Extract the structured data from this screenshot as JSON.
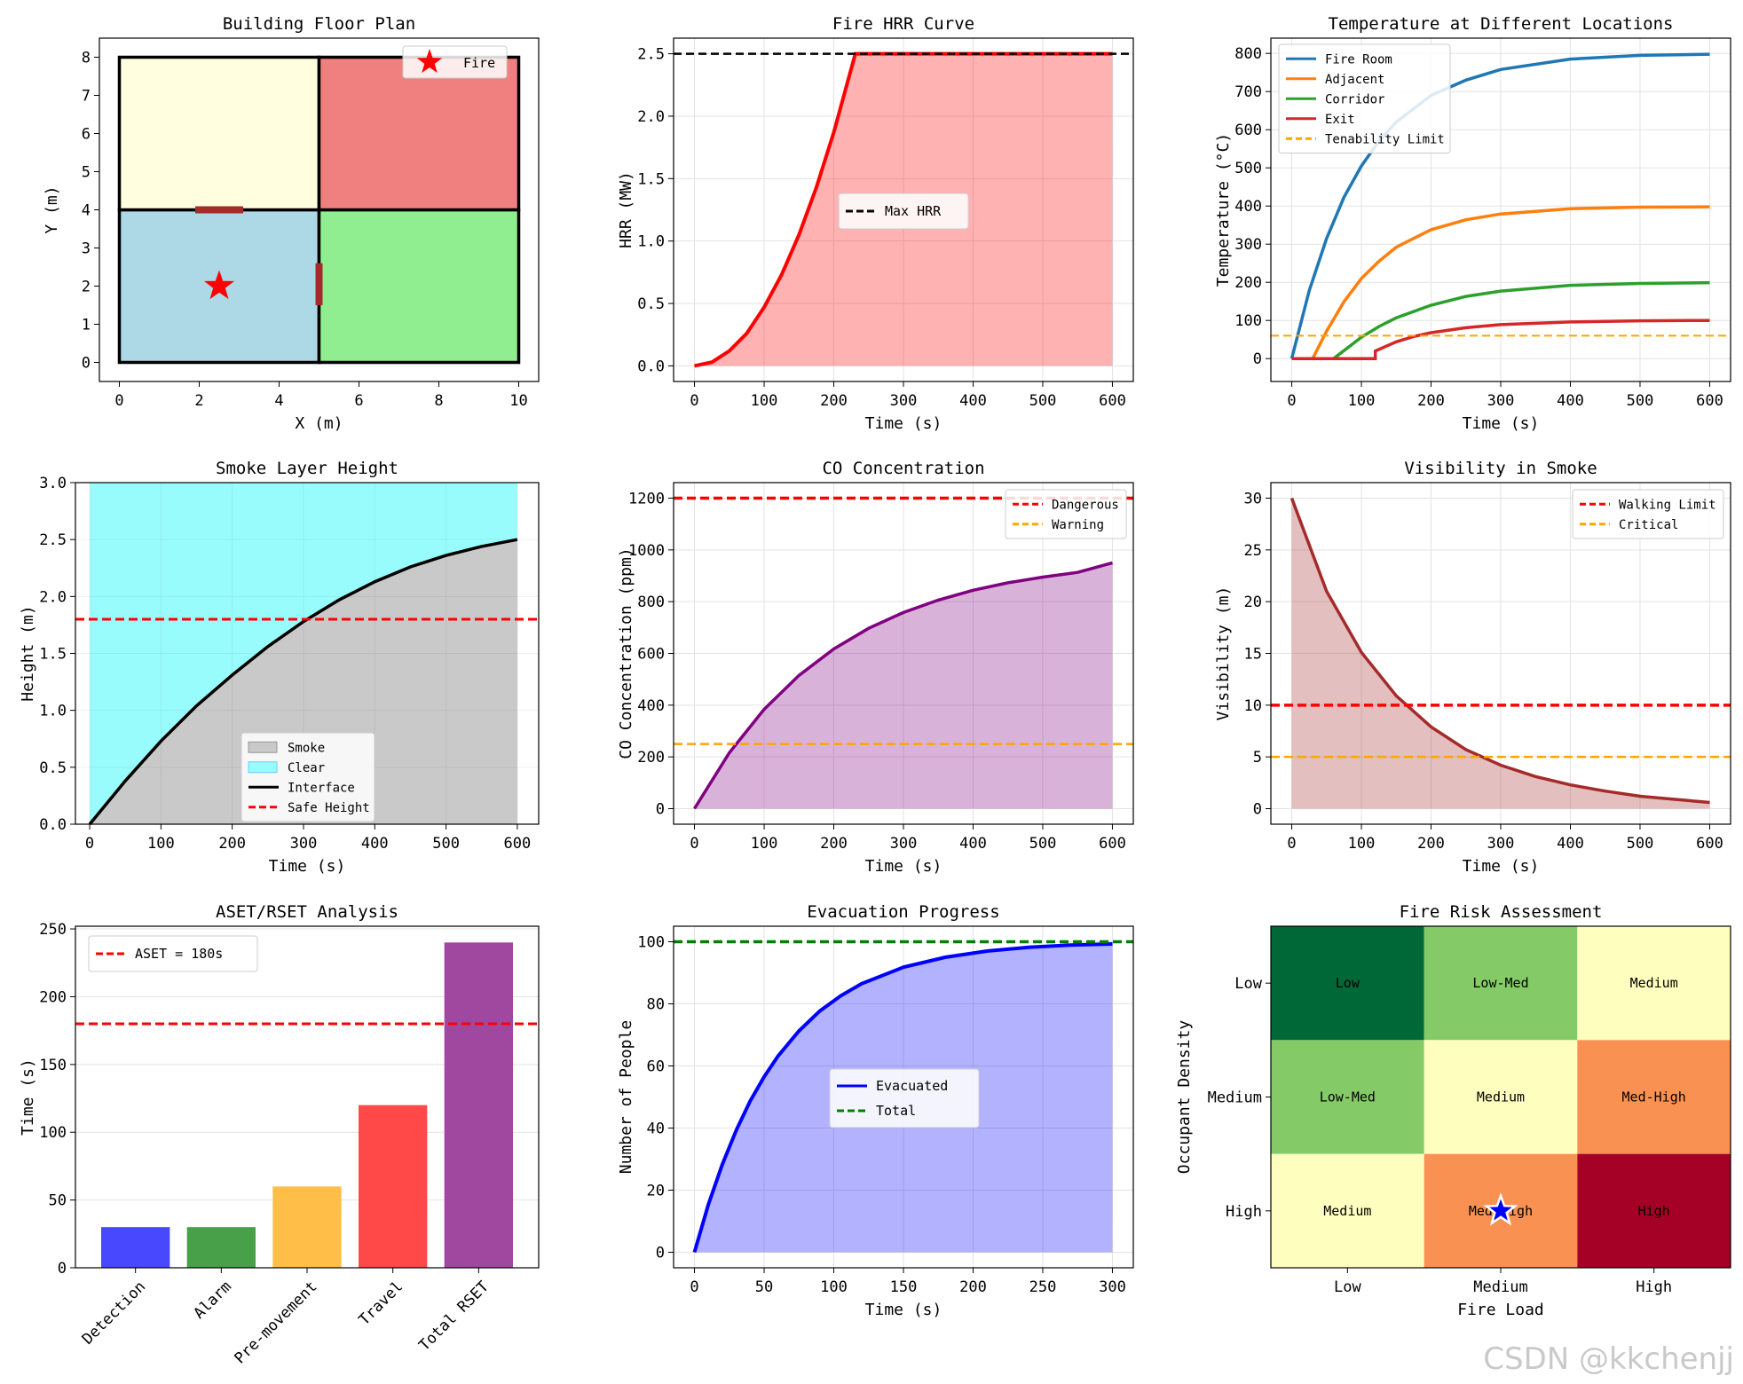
{
  "watermark": "CSDN @kkchenjj",
  "chart_data": [
    {
      "id": "floor",
      "type": "floorplan",
      "title": "Building Floor Plan",
      "xlabel": "X (m)",
      "ylabel": "Y (m)",
      "xlim": [
        -0.5,
        10.5
      ],
      "ylim": [
        -0.5,
        8.5
      ],
      "xticks": [
        0,
        2,
        4,
        6,
        8,
        10
      ],
      "yticks": [
        0,
        1,
        2,
        3,
        4,
        5,
        6,
        7,
        8
      ],
      "rooms": [
        {
          "name": "room-bottom-left",
          "x0": 0,
          "x1": 5,
          "y0": 0,
          "y1": 4,
          "color": "#add8e6"
        },
        {
          "name": "room-bottom-right",
          "x0": 5,
          "x1": 10,
          "y0": 0,
          "y1": 4,
          "color": "#90ee90"
        },
        {
          "name": "room-top-left",
          "x0": 0,
          "x1": 5,
          "y0": 4,
          "y1": 8,
          "color": "#ffffe0"
        },
        {
          "name": "room-top-right",
          "x0": 5,
          "x1": 10,
          "y0": 4,
          "y1": 8,
          "color": "#f08080"
        }
      ],
      "doors": [
        {
          "x0": 1.9,
          "y0": 4,
          "x1": 3.1,
          "y1": 4
        },
        {
          "x0": 5,
          "y0": 1.5,
          "x1": 5,
          "y1": 2.6
        }
      ],
      "fire": {
        "x": 2.5,
        "y": 2,
        "label": "Fire"
      }
    },
    {
      "id": "hrr",
      "type": "line",
      "title": "Fire HRR Curve",
      "xlabel": "Time (s)",
      "ylabel": "HRR (MW)",
      "xlim": [
        -30,
        630
      ],
      "ylim": [
        -0.125,
        2.625
      ],
      "xticks": [
        0,
        100,
        200,
        300,
        400,
        500,
        600
      ],
      "yticks": [
        0.0,
        0.5,
        1.0,
        1.5,
        2.0,
        2.5
      ],
      "ytick_labels": [
        "0.0",
        "0.5",
        "1.0",
        "1.5",
        "2.0",
        "2.5"
      ],
      "series": [
        {
          "name": "HRR",
          "color": "#ff0000",
          "x": [
            0,
            25,
            50,
            75,
            100,
            125,
            150,
            175,
            200,
            231,
            300,
            400,
            500,
            600
          ],
          "y": [
            0.0,
            0.03,
            0.12,
            0.26,
            0.47,
            0.73,
            1.05,
            1.43,
            1.87,
            2.5,
            2.5,
            2.5,
            2.5,
            2.5
          ]
        }
      ],
      "hlines": [
        {
          "y": 2.5,
          "color": "#000000",
          "label": "Max HRR"
        }
      ]
    },
    {
      "id": "temp",
      "type": "line",
      "title": "Temperature at Different Locations",
      "xlabel": "Time (s)",
      "ylabel": "Temperature (°C)",
      "xlim": [
        -30,
        630
      ],
      "ylim": [
        -60,
        840
      ],
      "xticks": [
        0,
        100,
        200,
        300,
        400,
        500,
        600
      ],
      "yticks": [
        0,
        100,
        200,
        300,
        400,
        500,
        600,
        700,
        800
      ],
      "series": [
        {
          "name": "Fire Room",
          "color": "#1f77b4",
          "x": [
            0,
            25,
            50,
            75,
            100,
            125,
            150,
            200,
            250,
            300,
            400,
            500,
            600
          ],
          "y": [
            0,
            178,
            315,
            423,
            505,
            570,
            620,
            690,
            730,
            758,
            785,
            795,
            798
          ]
        },
        {
          "name": "Adjacent",
          "color": "#ff7f0e",
          "x": [
            0,
            30,
            30,
            50,
            75,
            100,
            125,
            150,
            200,
            250,
            300,
            400,
            500,
            600
          ],
          "y": [
            0,
            0,
            0,
            72,
            149,
            210,
            255,
            292,
            338,
            364,
            379,
            393,
            397,
            398
          ]
        },
        {
          "name": "Corridor",
          "color": "#2ca02c",
          "x": [
            0,
            60,
            60,
            75,
            100,
            125,
            150,
            200,
            250,
            300,
            400,
            500,
            600
          ],
          "y": [
            0,
            0,
            0,
            21,
            56,
            84,
            107,
            140,
            163,
            177,
            192,
            197,
            199
          ]
        },
        {
          "name": "Exit",
          "color": "#d62728",
          "x": [
            0,
            120,
            120,
            150,
            175,
            200,
            250,
            300,
            400,
            500,
            600
          ],
          "y": [
            0,
            0,
            20,
            44,
            58,
            68,
            81,
            89,
            96,
            99,
            100
          ]
        }
      ],
      "hlines": [
        {
          "y": 60,
          "color": "#ffa500",
          "label": "Tenability Limit"
        }
      ]
    },
    {
      "id": "smoke",
      "type": "area",
      "title": "Smoke Layer Height",
      "xlabel": "Time (s)",
      "ylabel": "Height (m)",
      "xlim": [
        -20,
        630
      ],
      "ylim": [
        0,
        3
      ],
      "xticks": [
        0,
        100,
        200,
        300,
        400,
        500,
        600
      ],
      "yticks": [
        0.0,
        0.5,
        1.0,
        1.5,
        2.0,
        2.5,
        3.0
      ],
      "ytick_labels": [
        "0.0",
        "0.5",
        "1.0",
        "1.5",
        "2.0",
        "2.5",
        "3.0"
      ],
      "series": [
        {
          "name": "Interface",
          "color": "#000000",
          "x": [
            0,
            50,
            100,
            150,
            200,
            250,
            300,
            350,
            400,
            450,
            500,
            550,
            600
          ],
          "y": [
            0.0,
            0.38,
            0.73,
            1.04,
            1.31,
            1.56,
            1.78,
            1.97,
            2.13,
            2.26,
            2.36,
            2.44,
            2.5
          ]
        }
      ],
      "hlines": [
        {
          "y": 1.8,
          "color": "#ff0000",
          "label": "Safe Height"
        }
      ],
      "legend": [
        "Smoke",
        "Clear",
        "Interface",
        "Safe Height"
      ],
      "fills": {
        "smoke": "#c9c9c9",
        "clear": "#99fcfc"
      },
      "ceiling": 3
    },
    {
      "id": "co",
      "type": "area",
      "title": "CO Concentration",
      "xlabel": "Time (s)",
      "ylabel": "CO Concentration (ppm)",
      "xlim": [
        -30,
        630
      ],
      "ylim": [
        -60,
        1260
      ],
      "xticks": [
        0,
        100,
        200,
        300,
        400,
        500,
        600
      ],
      "yticks": [
        0,
        200,
        400,
        600,
        800,
        1000,
        1200
      ],
      "series": [
        {
          "name": "CO",
          "color": "#800080",
          "x": [
            0,
            50,
            100,
            150,
            200,
            250,
            300,
            350,
            400,
            450,
            500,
            550,
            600
          ],
          "y": [
            0,
            216,
            384,
            515,
            617,
            697,
            758,
            806,
            844,
            873,
            895,
            913,
            950
          ]
        }
      ],
      "hlines": [
        {
          "y": 1200,
          "color": "#ff0000",
          "label": "Dangerous"
        },
        {
          "y": 250,
          "color": "#ffa500",
          "label": "Warning"
        }
      ]
    },
    {
      "id": "vis",
      "type": "area",
      "title": "Visibility in Smoke",
      "xlabel": "Time (s)",
      "ylabel": "Visibility (m)",
      "xlim": [
        -30,
        630
      ],
      "ylim": [
        -1.5,
        31.5
      ],
      "xticks": [
        0,
        100,
        200,
        300,
        400,
        500,
        600
      ],
      "yticks": [
        0,
        5,
        10,
        15,
        20,
        25,
        30
      ],
      "series": [
        {
          "name": "Visibility",
          "color": "#a52a2a",
          "x": [
            0,
            50,
            100,
            150,
            200,
            250,
            300,
            350,
            400,
            450,
            500,
            550,
            600
          ],
          "y": [
            30.0,
            21.0,
            15.1,
            10.9,
            7.9,
            5.7,
            4.2,
            3.1,
            2.3,
            1.7,
            1.2,
            0.9,
            0.6
          ]
        }
      ],
      "hlines": [
        {
          "y": 10,
          "color": "#ff0000",
          "label": "Walking Limit"
        },
        {
          "y": 5,
          "color": "#ffa500",
          "label": "Critical"
        }
      ]
    },
    {
      "id": "aset",
      "type": "bar",
      "title": "ASET/RSET Analysis",
      "ylabel": "Time (s)",
      "ylim": [
        0,
        252
      ],
      "yticks": [
        0,
        50,
        100,
        150,
        200,
        250
      ],
      "categories": [
        "Detection",
        "Alarm",
        "Pre-movement",
        "Travel",
        "Total RSET"
      ],
      "values": [
        30,
        30,
        60,
        120,
        240
      ],
      "colors": [
        "#4848ff",
        "#48a048",
        "#ffbe48",
        "#ff4848",
        "#a048a0"
      ],
      "hlines": [
        {
          "y": 180,
          "color": "#ff0000",
          "label": "ASET = 180s"
        }
      ]
    },
    {
      "id": "evac",
      "type": "area",
      "title": "Evacuation Progress",
      "xlabel": "Time (s)",
      "ylabel": "Number of People",
      "xlim": [
        -15,
        315
      ],
      "ylim": [
        -5,
        105
      ],
      "xticks": [
        0,
        50,
        100,
        150,
        200,
        250,
        300
      ],
      "yticks": [
        0,
        20,
        40,
        60,
        80,
        100
      ],
      "series": [
        {
          "name": "Evacuated",
          "color": "#0000ff",
          "x": [
            0,
            10,
            20,
            30,
            40,
            50,
            60,
            75,
            90,
            105,
            120,
            150,
            180,
            210,
            240,
            270,
            300
          ],
          "y": [
            0,
            15.4,
            28.3,
            39.3,
            48.7,
            56.5,
            63.2,
            71.3,
            77.7,
            82.6,
            86.5,
            91.8,
            95.0,
            97.0,
            98.2,
            98.9,
            99.3
          ]
        }
      ],
      "hlines": [
        {
          "y": 100,
          "color": "#008000",
          "label": "Total"
        }
      ]
    },
    {
      "id": "risk",
      "type": "heatmap",
      "title": "Fire Risk Assessment",
      "xlabel": "Fire Load",
      "ylabel": "Occupant Density",
      "xcategories": [
        "Low",
        "Medium",
        "High"
      ],
      "ycategories": [
        "Low",
        "Medium",
        "High"
      ],
      "cells": [
        [
          "Low",
          "Low-Med",
          "Medium"
        ],
        [
          "Low-Med",
          "Medium",
          "Med-High"
        ],
        [
          "Medium",
          "Med-High",
          "High"
        ]
      ],
      "colors": [
        [
          "#006837",
          "#84ca66",
          "#feffbe"
        ],
        [
          "#84ca66",
          "#feffbe",
          "#f99153"
        ],
        [
          "#feffbe",
          "#f99153",
          "#a50026"
        ]
      ],
      "marker": {
        "x": "Medium",
        "y": "High",
        "color": "#0000ff"
      }
    }
  ]
}
